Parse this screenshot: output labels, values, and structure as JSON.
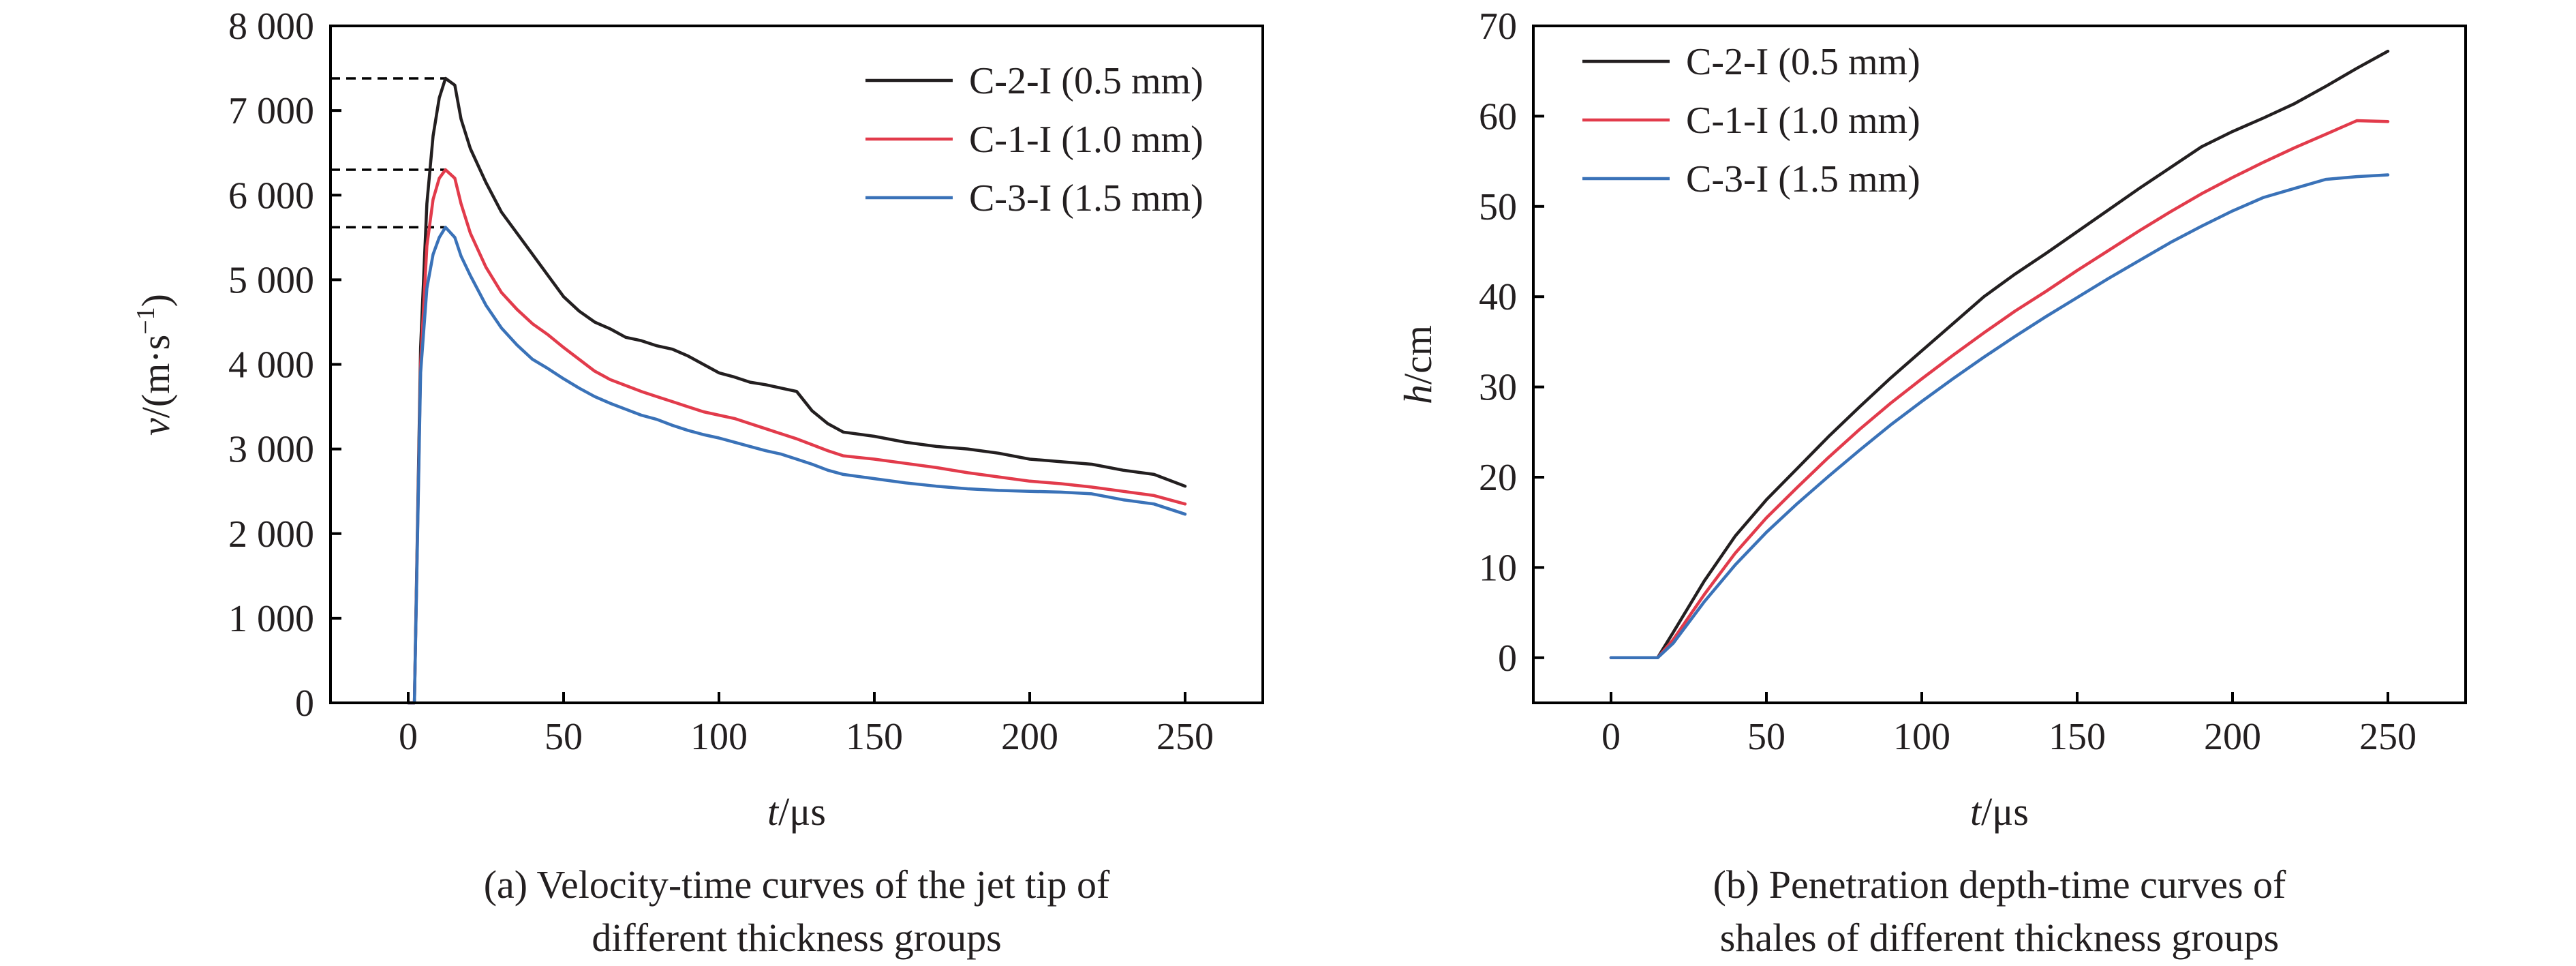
{
  "chart_data": [
    {
      "id": "a",
      "type": "line",
      "caption_lines": [
        "(a) Velocity-time curves of the jet tip of",
        "different thickness groups"
      ],
      "xlabel_italic": "t",
      "xlabel_unit": "/μs",
      "ylabel_italic": "v",
      "ylabel_unit": "/(m·s",
      "ylabel_exp": "−1",
      "ylabel_close": ")",
      "xlim": [
        -25,
        275
      ],
      "ylim": [
        0,
        8000
      ],
      "xticks": [
        0,
        50,
        100,
        150,
        200,
        250
      ],
      "yticks": [
        0,
        1000,
        2000,
        3000,
        4000,
        5000,
        6000,
        7000,
        8000
      ],
      "ytick_labels": [
        "0",
        "1 000",
        "2 000",
        "3 000",
        "4 000",
        "5 000",
        "6 000",
        "7 000",
        "8 000"
      ],
      "legend_position": "top-right",
      "peak_markers": [
        7380,
        6300,
        5620
      ],
      "series": [
        {
          "name": "C-2-I (0.5 mm)",
          "color": "#231f20",
          "x": [
            0,
            2,
            4,
            6,
            8,
            10,
            12,
            15,
            17,
            20,
            25,
            30,
            35,
            40,
            45,
            50,
            55,
            60,
            65,
            70,
            75,
            80,
            85,
            90,
            95,
            100,
            105,
            110,
            115,
            120,
            125,
            130,
            135,
            140,
            150,
            160,
            170,
            180,
            190,
            200,
            210,
            220,
            230,
            240,
            250
          ],
          "y": [
            0,
            0,
            4200,
            5900,
            6700,
            7150,
            7380,
            7300,
            6900,
            6550,
            6150,
            5800,
            5550,
            5300,
            5050,
            4800,
            4630,
            4500,
            4420,
            4320,
            4280,
            4220,
            4180,
            4100,
            4000,
            3900,
            3850,
            3790,
            3760,
            3720,
            3680,
            3450,
            3300,
            3200,
            3150,
            3080,
            3030,
            3000,
            2950,
            2880,
            2850,
            2820,
            2750,
            2700,
            2560
          ]
        },
        {
          "name": "C-1-I (1.0 mm)",
          "color": "#e23b4b",
          "x": [
            0,
            2,
            4,
            6,
            8,
            10,
            12,
            15,
            17,
            20,
            25,
            30,
            35,
            40,
            45,
            50,
            55,
            60,
            65,
            70,
            75,
            80,
            85,
            90,
            95,
            100,
            105,
            110,
            115,
            120,
            125,
            130,
            135,
            140,
            150,
            160,
            170,
            180,
            190,
            200,
            210,
            220,
            230,
            240,
            250
          ],
          "y": [
            0,
            0,
            4000,
            5400,
            5950,
            6200,
            6300,
            6200,
            5900,
            5550,
            5150,
            4850,
            4650,
            4480,
            4350,
            4200,
            4060,
            3920,
            3820,
            3750,
            3680,
            3620,
            3560,
            3500,
            3440,
            3400,
            3360,
            3300,
            3240,
            3180,
            3120,
            3050,
            2980,
            2920,
            2880,
            2830,
            2780,
            2720,
            2670,
            2620,
            2590,
            2550,
            2500,
            2450,
            2350
          ]
        },
        {
          "name": "C-3-I (1.5 mm)",
          "color": "#3a72b8",
          "x": [
            0,
            2,
            4,
            6,
            8,
            10,
            12,
            15,
            17,
            20,
            25,
            30,
            35,
            40,
            45,
            50,
            55,
            60,
            65,
            70,
            75,
            80,
            85,
            90,
            95,
            100,
            105,
            110,
            115,
            120,
            125,
            130,
            135,
            140,
            150,
            160,
            170,
            180,
            190,
            200,
            210,
            220,
            230,
            240,
            250
          ],
          "y": [
            0,
            0,
            3900,
            4900,
            5300,
            5500,
            5620,
            5500,
            5280,
            5050,
            4700,
            4430,
            4230,
            4060,
            3950,
            3830,
            3720,
            3620,
            3540,
            3470,
            3400,
            3350,
            3280,
            3220,
            3170,
            3130,
            3080,
            3030,
            2980,
            2940,
            2880,
            2820,
            2750,
            2700,
            2650,
            2600,
            2560,
            2530,
            2510,
            2500,
            2490,
            2470,
            2400,
            2350,
            2230
          ]
        }
      ]
    },
    {
      "id": "b",
      "type": "line",
      "caption_lines": [
        "(b) Penetration depth-time curves of",
        "shales of different thickness groups"
      ],
      "xlabel_italic": "t",
      "xlabel_unit": "/μs",
      "ylabel_italic": "h",
      "ylabel_unit": "/cm",
      "xlim": [
        -25,
        275
      ],
      "ylim": [
        -5,
        70
      ],
      "xticks": [
        0,
        50,
        100,
        150,
        200,
        250
      ],
      "yticks": [
        0,
        10,
        20,
        30,
        40,
        50,
        60,
        70
      ],
      "ytick_labels": [
        "0",
        "10",
        "20",
        "30",
        "40",
        "50",
        "60",
        "70"
      ],
      "legend_position": "top-left",
      "series": [
        {
          "name": "C-2-I (0.5 mm)",
          "color": "#231f20",
          "x": [
            0,
            5,
            10,
            15,
            20,
            30,
            40,
            50,
            60,
            70,
            80,
            90,
            100,
            110,
            120,
            130,
            140,
            150,
            160,
            170,
            180,
            190,
            200,
            210,
            220,
            230,
            240,
            250
          ],
          "y": [
            0,
            0,
            0,
            0,
            2.8,
            8.5,
            13.5,
            17.5,
            21.0,
            24.5,
            27.8,
            31.0,
            34.0,
            37.0,
            40.0,
            42.5,
            44.8,
            47.2,
            49.6,
            52.0,
            54.3,
            56.6,
            58.3,
            59.8,
            61.4,
            63.3,
            65.3,
            67.2
          ]
        },
        {
          "name": "C-1-I (1.0 mm)",
          "color": "#e23b4b",
          "x": [
            0,
            5,
            10,
            15,
            20,
            30,
            40,
            50,
            60,
            70,
            80,
            90,
            100,
            110,
            120,
            130,
            140,
            150,
            160,
            170,
            180,
            190,
            200,
            210,
            220,
            230,
            240,
            250
          ],
          "y": [
            0,
            0,
            0,
            0,
            2.0,
            7.0,
            11.6,
            15.5,
            18.9,
            22.2,
            25.3,
            28.2,
            30.9,
            33.5,
            36.0,
            38.4,
            40.6,
            42.9,
            45.1,
            47.3,
            49.4,
            51.4,
            53.2,
            54.9,
            56.5,
            58.0,
            59.5,
            59.4
          ]
        },
        {
          "name": "C-3-I (1.5 mm)",
          "color": "#3a72b8",
          "x": [
            0,
            5,
            10,
            15,
            20,
            30,
            40,
            50,
            60,
            70,
            80,
            90,
            100,
            110,
            120,
            130,
            140,
            150,
            160,
            170,
            180,
            190,
            200,
            210,
            220,
            230,
            240,
            250
          ],
          "y": [
            0,
            0,
            0,
            0,
            1.6,
            6.2,
            10.3,
            13.9,
            17.1,
            20.1,
            23.0,
            25.8,
            28.4,
            30.9,
            33.3,
            35.6,
            37.8,
            39.9,
            42.0,
            44.0,
            46.0,
            47.8,
            49.5,
            51.0,
            52.0,
            53.0,
            53.3,
            53.5
          ]
        }
      ]
    }
  ]
}
